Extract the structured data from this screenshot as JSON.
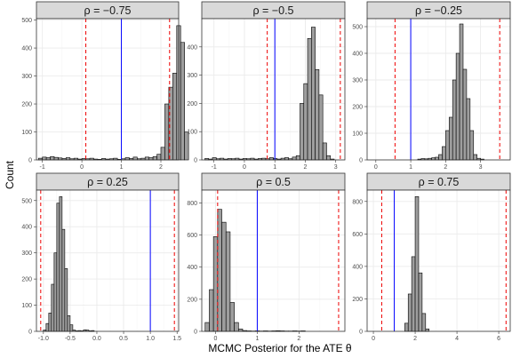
{
  "figure": {
    "xlabel": "MCMC Posterior for the ATE θ",
    "ylabel": "Count"
  },
  "colors": {
    "bar_fill": "#9e9e9e",
    "bar_outline": "#000000",
    "truth_line": "#0000ff",
    "interval_line": "#ee0000",
    "strip_bg": "#d9d9d9",
    "grid": "#ebebeb"
  },
  "chart_data": [
    {
      "type": "bar",
      "title": "ρ = −0.75",
      "xlim": [
        -1.15,
        2.45
      ],
      "ylim": [
        0,
        505
      ],
      "xticks": [
        -1,
        0,
        1,
        2
      ],
      "xtick_labels": [
        "-1",
        "0",
        "1",
        "2"
      ],
      "yticks": [
        0,
        100,
        200,
        300,
        400,
        500
      ],
      "ytick_labels": [
        "0",
        "100",
        "200",
        "300",
        "400",
        "500"
      ],
      "bin_start": -1.1,
      "bin_width": 0.1,
      "counts": [
        6,
        10,
        8,
        12,
        9,
        7,
        5,
        8,
        4,
        6,
        3,
        5,
        4,
        6,
        3,
        2,
        5,
        3,
        4,
        6,
        2,
        4,
        8,
        5,
        10,
        4,
        6,
        10,
        8,
        12,
        20,
        45,
        200,
        260,
        310,
        480,
        420,
        100
      ],
      "vlines": {
        "truth": 1.0,
        "interval": [
          0.1,
          2.22
        ]
      }
    },
    {
      "type": "bar",
      "title": "ρ = −0.5",
      "xlim": [
        -1.4,
        3.3
      ],
      "ylim": [
        0,
        500
      ],
      "xticks": [
        -1,
        0,
        1,
        2,
        3
      ],
      "xtick_labels": [
        "-1",
        "0",
        "1",
        "2",
        "3"
      ],
      "yticks": [
        0,
        100,
        200,
        300,
        400
      ],
      "ytick_labels": [
        "0",
        "100",
        "200",
        "300",
        "400"
      ],
      "bin_start": -1.3,
      "bin_width": 0.125,
      "counts": [
        5,
        3,
        8,
        4,
        6,
        3,
        5,
        4,
        6,
        3,
        5,
        4,
        6,
        3,
        5,
        6,
        4,
        8,
        5,
        3,
        6,
        8,
        4,
        10,
        15,
        200,
        270,
        430,
        470,
        320,
        230,
        60,
        15,
        3
      ],
      "vlines": {
        "truth": 1.0,
        "interval": [
          0.75,
          3.15
        ]
      }
    },
    {
      "type": "bar",
      "title": "ρ = −0.25",
      "xlim": [
        -0.25,
        3.85
      ],
      "ylim": [
        0,
        530
      ],
      "xticks": [
        0,
        1,
        2,
        3
      ],
      "xtick_labels": [
        "0",
        "1",
        "2",
        "3"
      ],
      "yticks": [
        0,
        100,
        200,
        300,
        400,
        500
      ],
      "ytick_labels": [
        "0",
        "100",
        "200",
        "300",
        "400",
        "500"
      ],
      "bin_start": 1.2,
      "bin_width": 0.1,
      "counts": [
        3,
        5,
        4,
        6,
        8,
        10,
        20,
        50,
        110,
        160,
        300,
        400,
        510,
        340,
        230,
        110,
        20,
        6,
        3
      ],
      "vlines": {
        "truth": 1.0,
        "interval": [
          0.55,
          3.55
        ]
      }
    },
    {
      "type": "bar",
      "title": "ρ = 0.25",
      "xlim": [
        -1.13,
        1.53
      ],
      "ylim": [
        0,
        540
      ],
      "xticks": [
        -1.0,
        -0.5,
        0.0,
        0.5,
        1.0,
        1.5
      ],
      "xtick_labels": [
        "-1.0",
        "-0.5",
        "0.0",
        "0.5",
        "1.0",
        "1.5"
      ],
      "yticks": [
        0,
        100,
        200,
        300,
        400,
        500
      ],
      "ytick_labels": [
        "0",
        "100",
        "200",
        "300",
        "400",
        "500"
      ],
      "bin_start": -1.0,
      "bin_width": 0.05,
      "counts": [
        5,
        30,
        70,
        180,
        300,
        490,
        515,
        390,
        240,
        60,
        25,
        5,
        2,
        3,
        2,
        6,
        5,
        2,
        3
      ],
      "vlines": {
        "truth": 1.0,
        "interval": [
          -1.05,
          1.45
        ]
      }
    },
    {
      "type": "bar",
      "title": "ρ = 0.5",
      "xlim": [
        -0.33,
        3.1
      ],
      "ylim": [
        0,
        880
      ],
      "xticks": [
        0,
        1,
        2
      ],
      "xtick_labels": [
        "0",
        "1",
        "2"
      ],
      "yticks": [
        0,
        200,
        400,
        600,
        800
      ],
      "ytick_labels": [
        "0",
        "200",
        "400",
        "600",
        "800"
      ],
      "bin_start": -0.25,
      "bin_width": 0.1,
      "counts": [
        55,
        260,
        590,
        760,
        680,
        620,
        180,
        55,
        15,
        5,
        3,
        2,
        3,
        2,
        3,
        2,
        3,
        4,
        3,
        2,
        2,
        3,
        2,
        3
      ],
      "vlines": {
        "truth": 1.0,
        "interval": [
          0.05,
          2.95
        ]
      }
    },
    {
      "type": "bar",
      "title": "ρ = 0.75",
      "xlim": [
        -0.3,
        6.55
      ],
      "ylim": [
        0,
        870
      ],
      "xticks": [
        0,
        2,
        4,
        6
      ],
      "xtick_labels": [
        "0",
        "2",
        "4",
        "6"
      ],
      "yticks": [
        0,
        200,
        400,
        600,
        800
      ],
      "ytick_labels": [
        "0",
        "200",
        "400",
        "600",
        "800"
      ],
      "bin_start": 1.5,
      "bin_width": 0.1667,
      "counts": [
        50,
        230,
        460,
        830,
        360,
        110,
        15
      ],
      "vlines": {
        "truth": 1.0,
        "interval": [
          0.4,
          6.35
        ]
      }
    }
  ]
}
